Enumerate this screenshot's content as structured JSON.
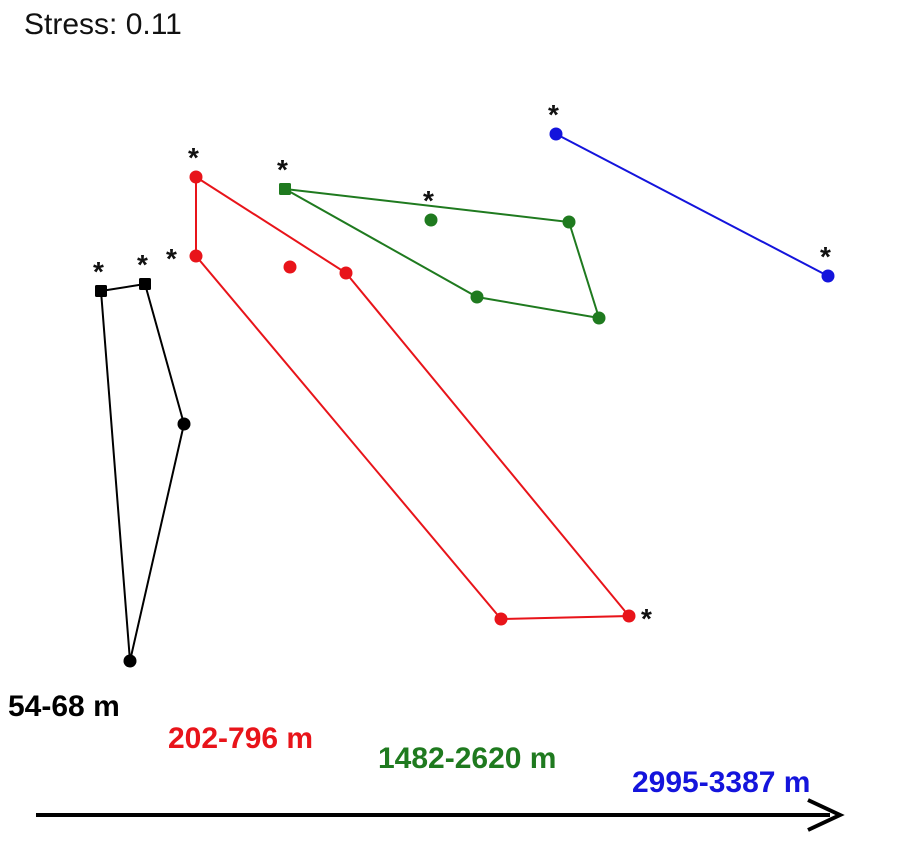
{
  "chart_data": {
    "type": "scatter",
    "title": "Stress: 0.11",
    "marker_note": "*",
    "series": [
      {
        "name": "54-68 m",
        "color": "#000000",
        "closed": true,
        "points": [
          {
            "x": 101,
            "y": -291,
            "marker": "square",
            "star": true
          },
          {
            "x": 145,
            "y": -284,
            "marker": "square",
            "star": true
          },
          {
            "x": 184,
            "y": -424,
            "marker": "circle",
            "star": false
          },
          {
            "x": 130,
            "y": -661,
            "marker": "circle",
            "star": false
          }
        ]
      },
      {
        "name": "202-796 m",
        "color": "#e8141a",
        "closed": true,
        "points": [
          {
            "x": 196,
            "y": -177,
            "marker": "circle",
            "star": true
          },
          {
            "x": 346,
            "y": -273,
            "marker": "circle",
            "star": false
          },
          {
            "x": 629,
            "y": -616,
            "marker": "circle",
            "star": true
          },
          {
            "x": 501,
            "y": -619,
            "marker": "circle",
            "star": false
          },
          {
            "x": 196,
            "y": -256,
            "marker": "circle",
            "star": true
          }
        ],
        "extra_points": [
          {
            "x": 290,
            "y": -267,
            "marker": "circle",
            "star": false
          }
        ]
      },
      {
        "name": "1482-2620 m",
        "color": "#1f7a1f",
        "closed": true,
        "points": [
          {
            "x": 285,
            "y": -189,
            "marker": "square",
            "star": true
          },
          {
            "x": 569,
            "y": -222,
            "marker": "circle",
            "star": false
          },
          {
            "x": 599,
            "y": -318,
            "marker": "circle",
            "star": false
          },
          {
            "x": 477,
            "y": -297,
            "marker": "circle",
            "star": false
          }
        ],
        "extra_points": [
          {
            "x": 431,
            "y": -220,
            "marker": "circle",
            "star": true
          }
        ]
      },
      {
        "name": "2995-3387 m",
        "color": "#1414dc",
        "closed": false,
        "points": [
          {
            "x": 556,
            "y": -134,
            "marker": "circle",
            "star": true
          },
          {
            "x": 828,
            "y": -276,
            "marker": "circle",
            "star": true
          }
        ]
      }
    ],
    "axis_arrow": true,
    "grid": false
  }
}
